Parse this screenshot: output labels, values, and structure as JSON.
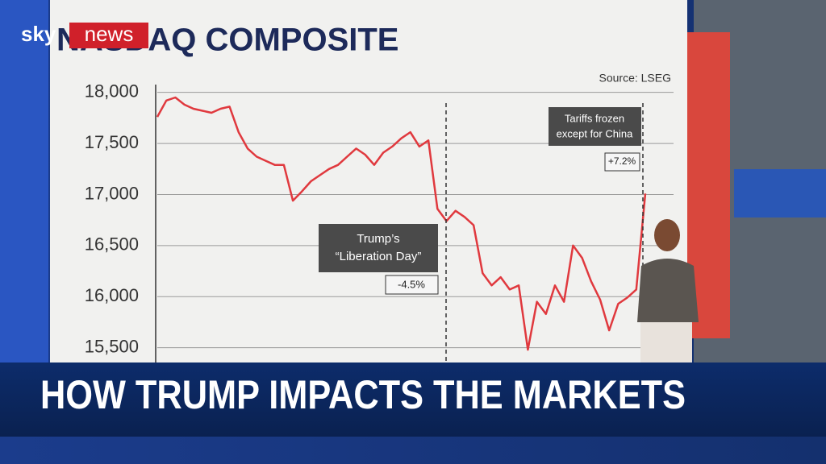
{
  "chart_data": {
    "type": "line",
    "title": "NASDAQ COMPOSITE",
    "source": "Source: LSEG",
    "series": [
      {
        "name": "NASDAQ Composite",
        "color": "#e0393e",
        "values": [
          17760,
          17920,
          17950,
          17880,
          17840,
          17820,
          17800,
          17840,
          17860,
          17610,
          17450,
          17370,
          17330,
          17290,
          17290,
          16940,
          17030,
          17130,
          17190,
          17250,
          17290,
          17370,
          17450,
          17390,
          17290,
          17410,
          17470,
          17550,
          17610,
          17470,
          17530,
          16860,
          16740,
          16840,
          16780,
          16700,
          16230,
          16110,
          16190,
          16070,
          16110,
          15480,
          15950,
          15830,
          16110,
          15950,
          16500,
          16380,
          16150,
          15970,
          15670,
          15930,
          15990,
          16070,
          17010
        ]
      }
    ],
    "ylim": [
      15000,
      18100
    ],
    "yticks": [
      {
        "value": 15500,
        "label": "15,500"
      },
      {
        "value": 16000,
        "label": "16,000"
      },
      {
        "value": 16500,
        "label": "16,500"
      },
      {
        "value": 17000,
        "label": "17,000"
      },
      {
        "value": 17500,
        "label": "17,500"
      },
      {
        "value": 18000,
        "label": "18,000"
      }
    ],
    "grid": true,
    "annotations": [
      {
        "text": [
          "Trump’s",
          "“Liberation Day”"
        ],
        "change": "-4.5%"
      },
      {
        "text": [
          "Tariffs frozen",
          "except for China"
        ],
        "change": "+7.2%"
      }
    ]
  },
  "overlay": {
    "logo": {
      "brand": "sky",
      "product": "news"
    },
    "headline": "HOW TRUMP IMPACTS THE MARKETS"
  }
}
